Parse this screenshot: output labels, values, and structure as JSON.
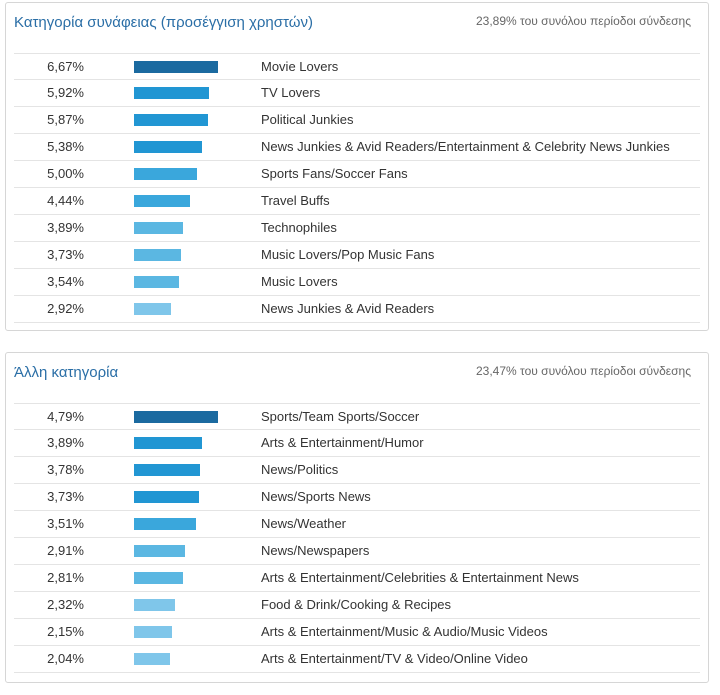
{
  "panels": [
    {
      "title": "Κατηγορία συνάφειας (προσέγγιση χρηστών)",
      "summary": "23,89% του συνόλου περίοδοι σύνδεσης"
    },
    {
      "title": "Άλλη κατηγορία",
      "summary": "23,47% του συνόλου περίοδοι σύνδεσης"
    }
  ],
  "colors": {
    "title": "#2a6ea6",
    "bar_scale": [
      "#1b6aa0",
      "#2196d3",
      "#3aa7dc",
      "#5bb7e2",
      "#7fc6ea"
    ]
  },
  "chart_data": [
    {
      "type": "bar",
      "orientation": "horizontal",
      "title": "Κατηγορία συνάφειας (προσέγγιση χρηστών)",
      "categories": [
        "Movie Lovers",
        "TV Lovers",
        "Political Junkies",
        "News Junkies & Avid Readers/Entertainment & Celebrity News Junkies",
        "Sports Fans/Soccer Fans",
        "Travel Buffs",
        "Technophiles",
        "Music Lovers/Pop Music Fans",
        "Music Lovers",
        "News Junkies & Avid Readers"
      ],
      "values": [
        6.67,
        5.92,
        5.87,
        5.38,
        5.0,
        4.44,
        3.89,
        3.73,
        3.54,
        2.92
      ],
      "value_labels": [
        "6,67%",
        "5,92%",
        "5,87%",
        "5,38%",
        "5,00%",
        "4,44%",
        "3,89%",
        "3,73%",
        "3,54%",
        "2,92%"
      ]
    },
    {
      "type": "bar",
      "orientation": "horizontal",
      "title": "Άλλη κατηγορία",
      "categories": [
        "Sports/Team Sports/Soccer",
        "Arts & Entertainment/Humor",
        "News/Politics",
        "News/Sports News",
        "News/Weather",
        "News/Newspapers",
        "Arts & Entertainment/Celebrities & Entertainment News",
        "Food & Drink/Cooking & Recipes",
        "Arts & Entertainment/Music & Audio/Music Videos",
        "Arts & Entertainment/TV & Video/Online Video"
      ],
      "values": [
        4.79,
        3.89,
        3.78,
        3.73,
        3.51,
        2.91,
        2.81,
        2.32,
        2.15,
        2.04
      ],
      "value_labels": [
        "4,79%",
        "3,89%",
        "3,78%",
        "3,73%",
        "3,51%",
        "2,91%",
        "2,81%",
        "2,32%",
        "2,15%",
        "2,04%"
      ]
    }
  ]
}
